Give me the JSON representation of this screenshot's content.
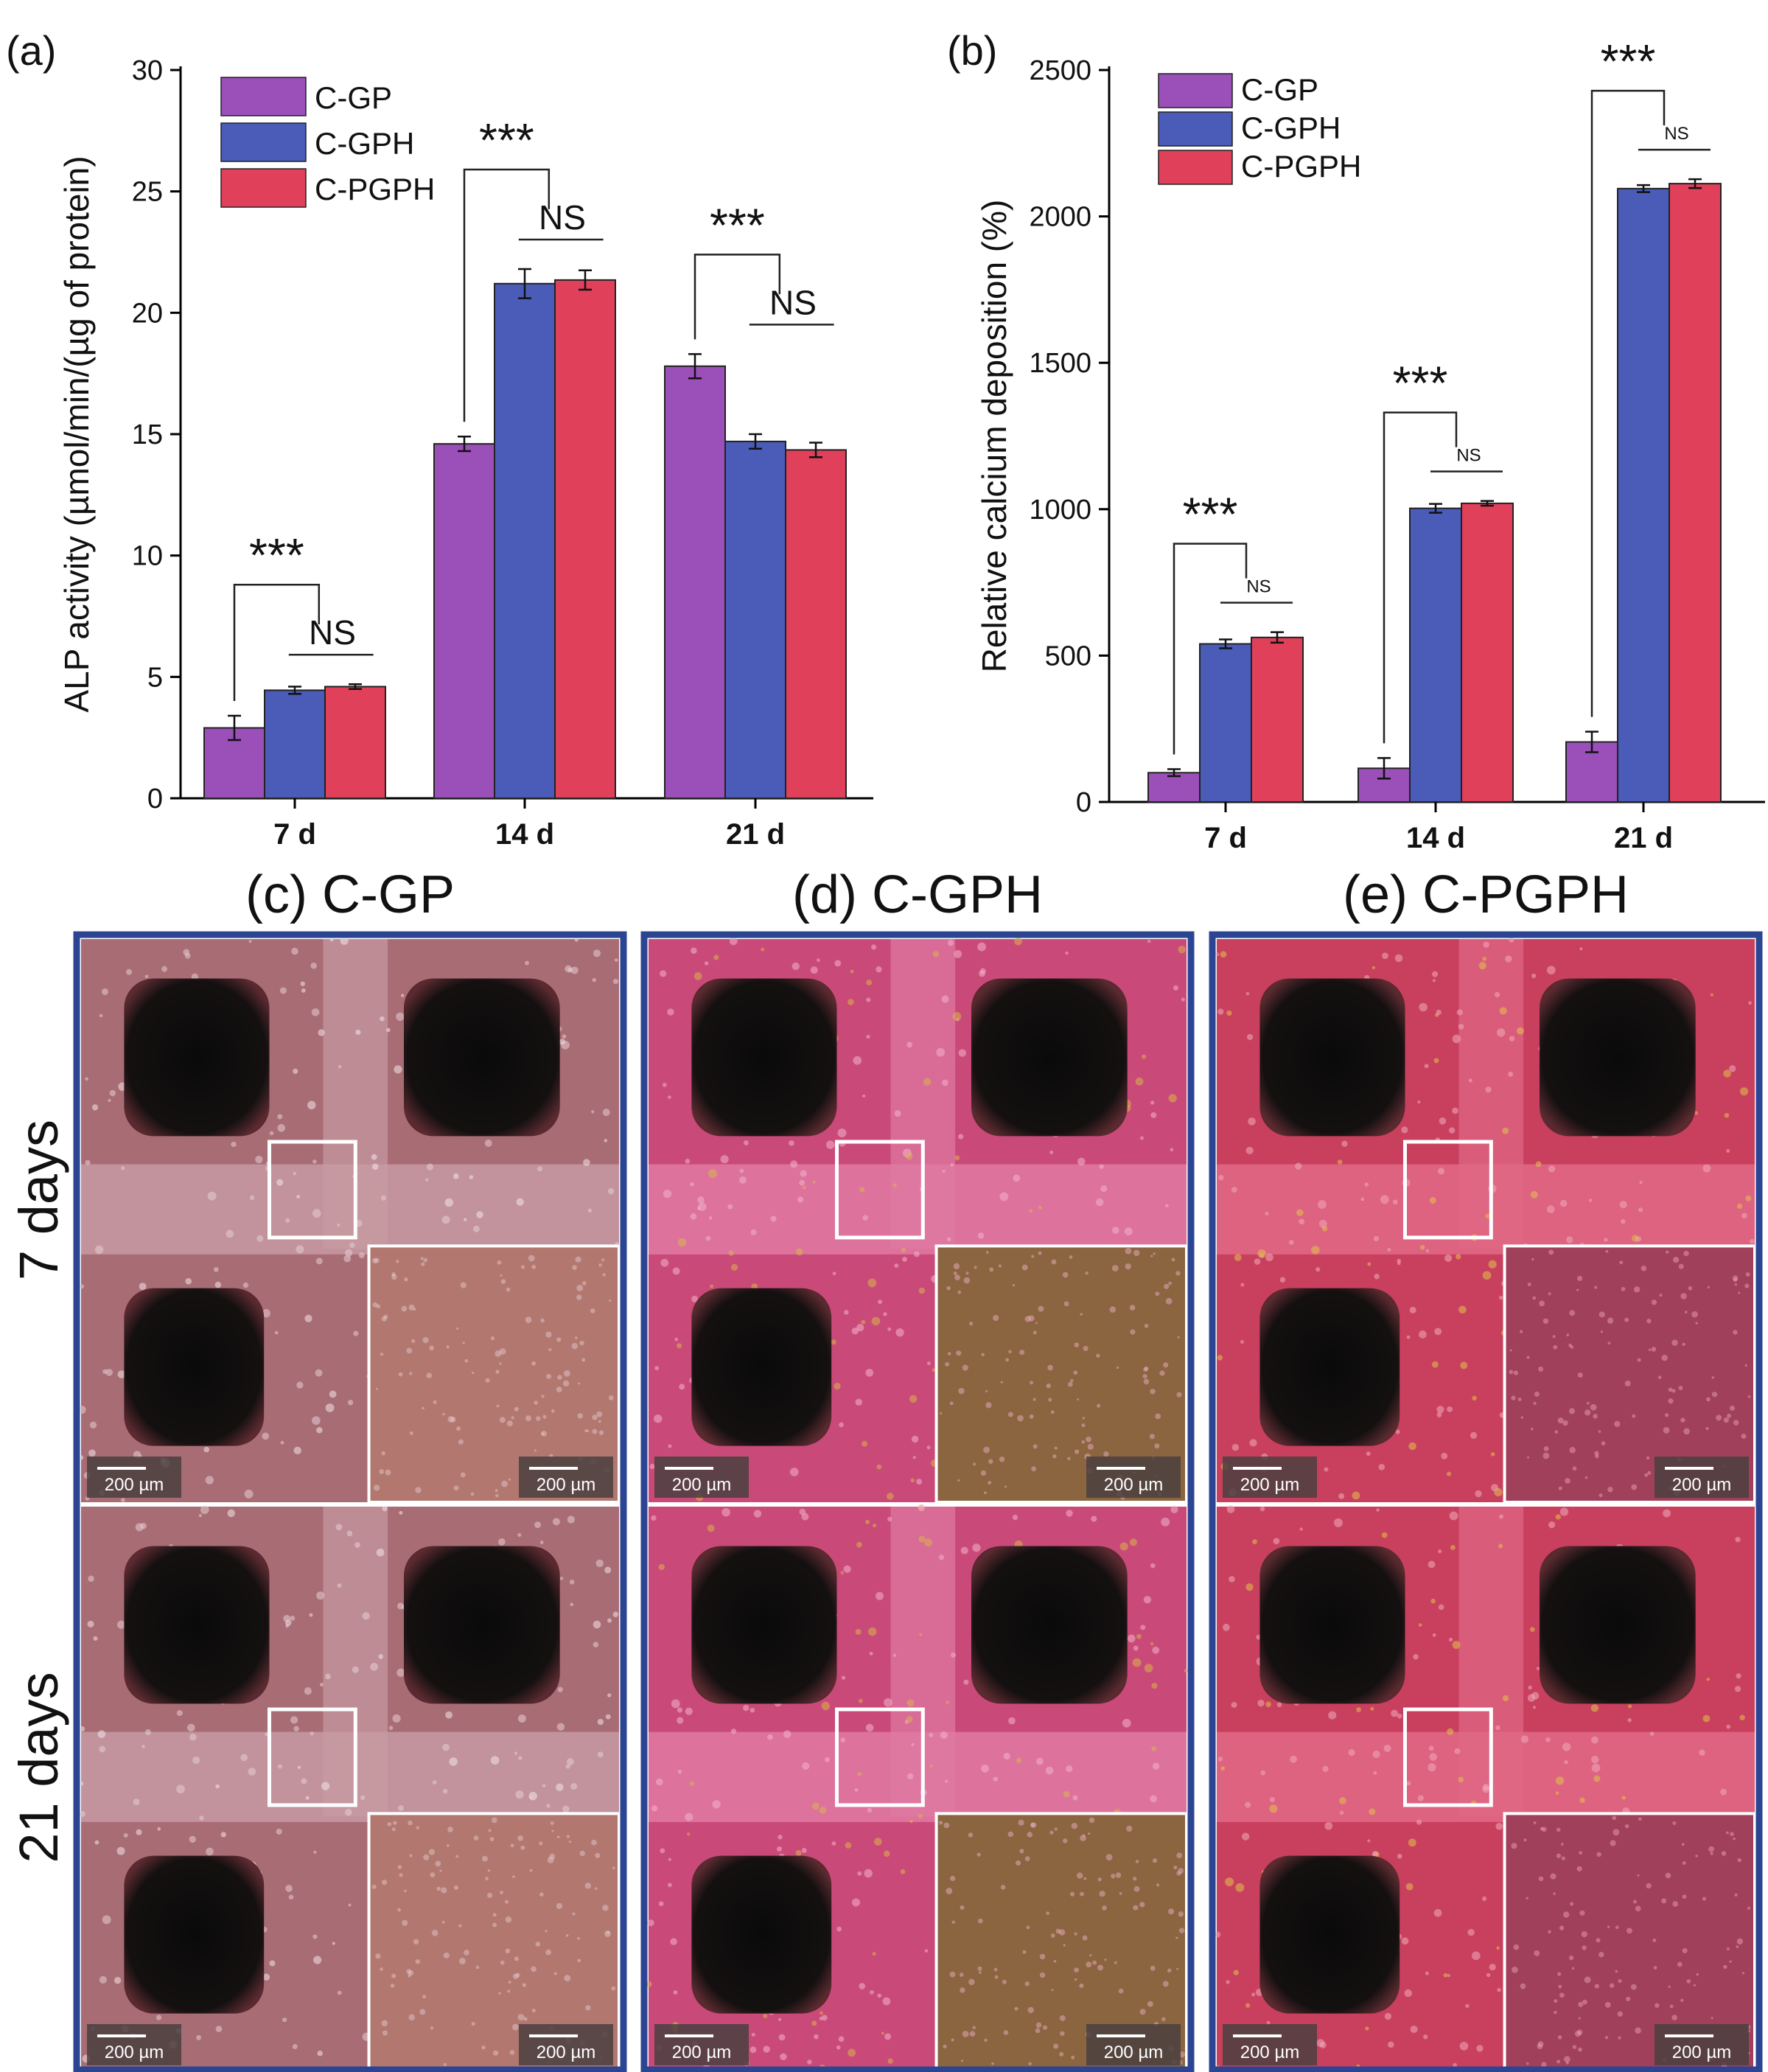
{
  "chart_data": [
    {
      "panel": "(a)",
      "type": "bar",
      "categories": [
        "7 d",
        "14 d",
        "21 d"
      ],
      "series": [
        {
          "name": "C-GP",
          "values": [
            2.9,
            14.6,
            17.8
          ],
          "errors": [
            0.5,
            0.3,
            0.5
          ],
          "color": "#9b4fb8"
        },
        {
          "name": "C-GPH",
          "values": [
            4.45,
            21.2,
            14.7
          ],
          "errors": [
            0.15,
            0.6,
            0.3
          ],
          "color": "#4a5cb8"
        },
        {
          "name": "C-PGPH",
          "values": [
            4.6,
            21.35,
            14.35
          ],
          "errors": [
            0.1,
            0.4,
            0.3
          ],
          "color": "#e0405a"
        }
      ],
      "xlabel": "",
      "ylabel": "ALP activity (µmol/min/(µg of protein)",
      "ylim": [
        0,
        30
      ],
      "yticks": [
        "0",
        "5",
        "10",
        "15",
        "20",
        "25",
        "30"
      ],
      "legend": "top-left",
      "significance": [
        {
          "group": 0,
          "star": "***",
          "ns": "NS"
        },
        {
          "group": 1,
          "star": "***",
          "ns": "NS"
        },
        {
          "group": 2,
          "star": "***",
          "ns": "NS"
        }
      ]
    },
    {
      "panel": "(b)",
      "type": "bar",
      "categories": [
        "7 d",
        "14 d",
        "21 d"
      ],
      "series": [
        {
          "name": "C-GP",
          "values": [
            100,
            115,
            205
          ],
          "errors": [
            12,
            35,
            35
          ],
          "color": "#9b4fb8"
        },
        {
          "name": "C-GPH",
          "values": [
            540,
            1003,
            2095
          ],
          "errors": [
            15,
            15,
            12
          ],
          "color": "#4a5cb8"
        },
        {
          "name": "C-PGPH",
          "values": [
            562,
            1020,
            2112
          ],
          "errors": [
            18,
            8,
            15
          ],
          "color": "#e0405a"
        }
      ],
      "xlabel": "",
      "ylabel": "Relative calcium deposition (%)",
      "ylim": [
        0,
        2500
      ],
      "yticks": [
        "0",
        "500",
        "1000",
        "1500",
        "2000",
        "2500"
      ],
      "legend": "top-left",
      "significance": [
        {
          "group": 0,
          "star": "***",
          "ns": "NS"
        },
        {
          "group": 1,
          "star": "***",
          "ns": "NS"
        },
        {
          "group": 2,
          "star": "***",
          "ns": "NS"
        }
      ]
    }
  ],
  "micrographs": {
    "panels": [
      {
        "label": "(c) C-GP"
      },
      {
        "label": "(d) C-GPH"
      },
      {
        "label": "(e) C-PGPH"
      }
    ],
    "rows": [
      {
        "label": "7 days"
      },
      {
        "label": "21 days"
      }
    ],
    "scale_bar": "200 µm"
  }
}
